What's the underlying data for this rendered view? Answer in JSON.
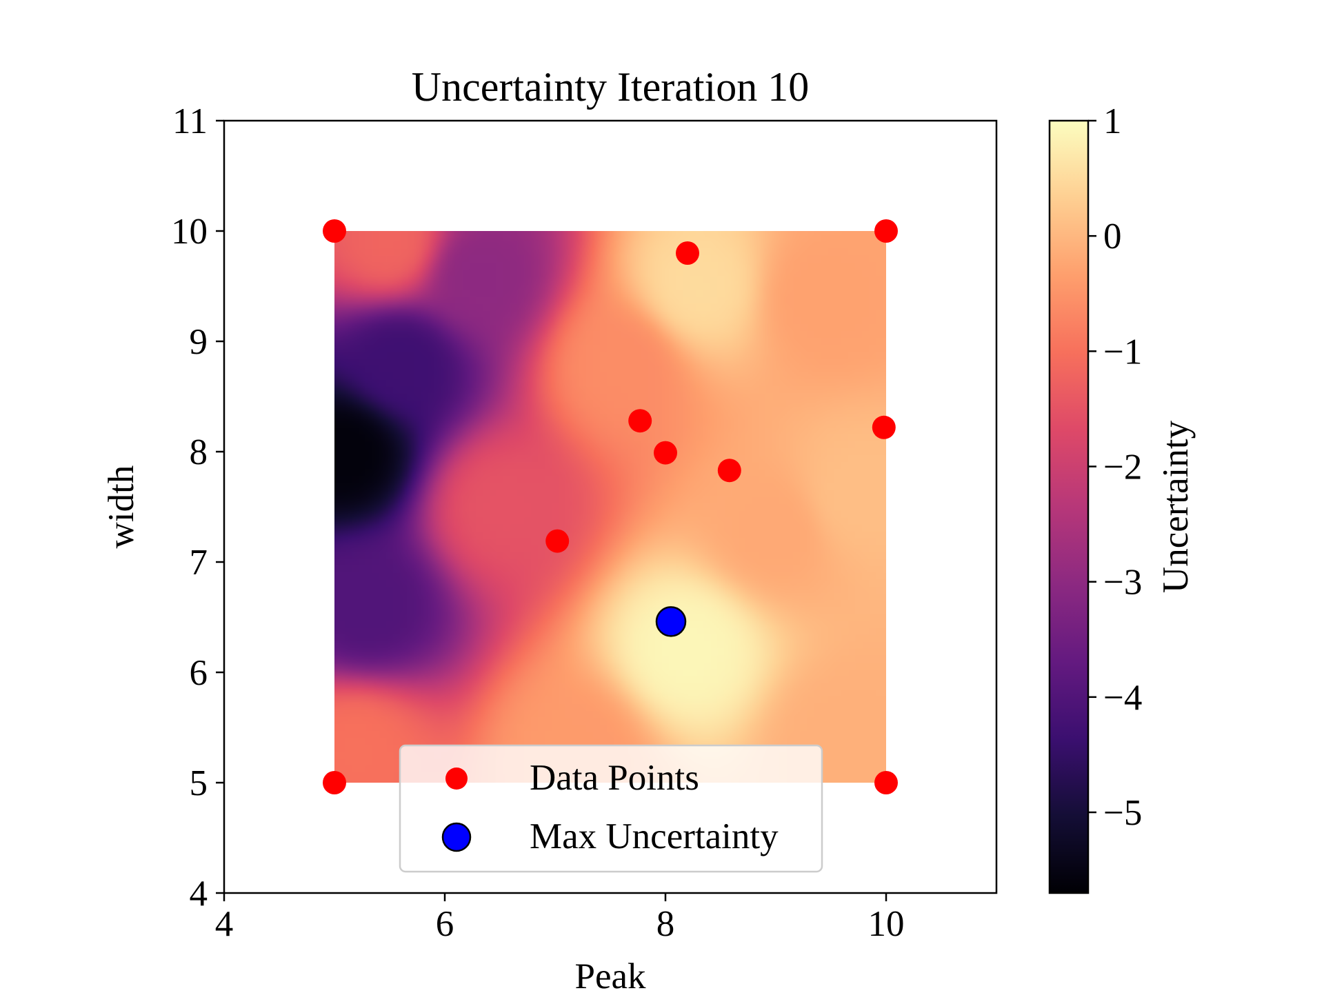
{
  "chart_data": {
    "type": "heatmap",
    "title": "Uncertainty Iteration 10",
    "xlabel": "Peak",
    "ylabel": "width",
    "xlim": [
      4,
      11
    ],
    "ylim": [
      4,
      11
    ],
    "xticks": [
      {
        "value": 4,
        "label": "4"
      },
      {
        "value": 6,
        "label": "6"
      },
      {
        "value": 8,
        "label": "8"
      },
      {
        "value": 10,
        "label": "10"
      }
    ],
    "yticks": [
      {
        "value": 4,
        "label": "4"
      },
      {
        "value": 5,
        "label": "5"
      },
      {
        "value": 6,
        "label": "6"
      },
      {
        "value": 7,
        "label": "7"
      },
      {
        "value": 8,
        "label": "8"
      },
      {
        "value": 9,
        "label": "9"
      },
      {
        "value": 10,
        "label": "10"
      },
      {
        "value": 11,
        "label": "11"
      }
    ],
    "heatmap": {
      "x_range": [
        5,
        10
      ],
      "y_range": [
        5,
        10
      ],
      "colormap": "magma",
      "description_points": [
        {
          "x": 5.1,
          "y": 8.0,
          "value": -5.6
        },
        {
          "x": 5.6,
          "y": 8.8,
          "value": -4.3
        },
        {
          "x": 5.3,
          "y": 6.6,
          "value": -4.0
        },
        {
          "x": 5.5,
          "y": 9.9,
          "value": -1.2
        },
        {
          "x": 6.3,
          "y": 9.6,
          "value": -3.0
        },
        {
          "x": 5.2,
          "y": 5.3,
          "value": -1.0
        },
        {
          "x": 6.5,
          "y": 7.5,
          "value": -1.5
        },
        {
          "x": 7.6,
          "y": 8.8,
          "value": -0.6
        },
        {
          "x": 8.2,
          "y": 6.2,
          "value": 0.9
        },
        {
          "x": 8.3,
          "y": 9.5,
          "value": 0.5
        },
        {
          "x": 9.4,
          "y": 9.4,
          "value": -0.3
        },
        {
          "x": 9.6,
          "y": 5.4,
          "value": -0.1
        },
        {
          "x": 7.2,
          "y": 5.3,
          "value": -0.4
        },
        {
          "x": 9.0,
          "y": 7.3,
          "value": -0.2
        },
        {
          "x": 9.7,
          "y": 7.6,
          "value": 0.1
        }
      ]
    },
    "colorbar": {
      "label": "Uncertainty",
      "vmin": -5.7,
      "vmax": 1.0,
      "ticks": [
        {
          "value": 1,
          "label": "1"
        },
        {
          "value": 0,
          "label": "0"
        },
        {
          "value": -1,
          "label": "−1"
        },
        {
          "value": -2,
          "label": "−2"
        },
        {
          "value": -3,
          "label": "−3"
        },
        {
          "value": -4,
          "label": "−4"
        },
        {
          "value": -5,
          "label": "−5"
        }
      ]
    },
    "series": [
      {
        "name": "Data Points",
        "color": "#ff0000",
        "points": [
          {
            "x": 5.0,
            "y": 10.0
          },
          {
            "x": 10.0,
            "y": 10.0
          },
          {
            "x": 8.2,
            "y": 9.8
          },
          {
            "x": 7.77,
            "y": 8.28
          },
          {
            "x": 8.0,
            "y": 7.99
          },
          {
            "x": 8.58,
            "y": 7.83
          },
          {
            "x": 9.98,
            "y": 8.22
          },
          {
            "x": 7.02,
            "y": 7.19
          },
          {
            "x": 5.0,
            "y": 5.0
          },
          {
            "x": 10.0,
            "y": 5.0
          }
        ]
      },
      {
        "name": "Max Uncertainty",
        "color": "#0000ff",
        "edge_color": "#000000",
        "points": [
          {
            "x": 8.05,
            "y": 6.46
          }
        ]
      }
    ],
    "legend": {
      "position": "lower center",
      "entries": [
        "Data Points",
        "Max Uncertainty"
      ]
    },
    "grid": false
  }
}
